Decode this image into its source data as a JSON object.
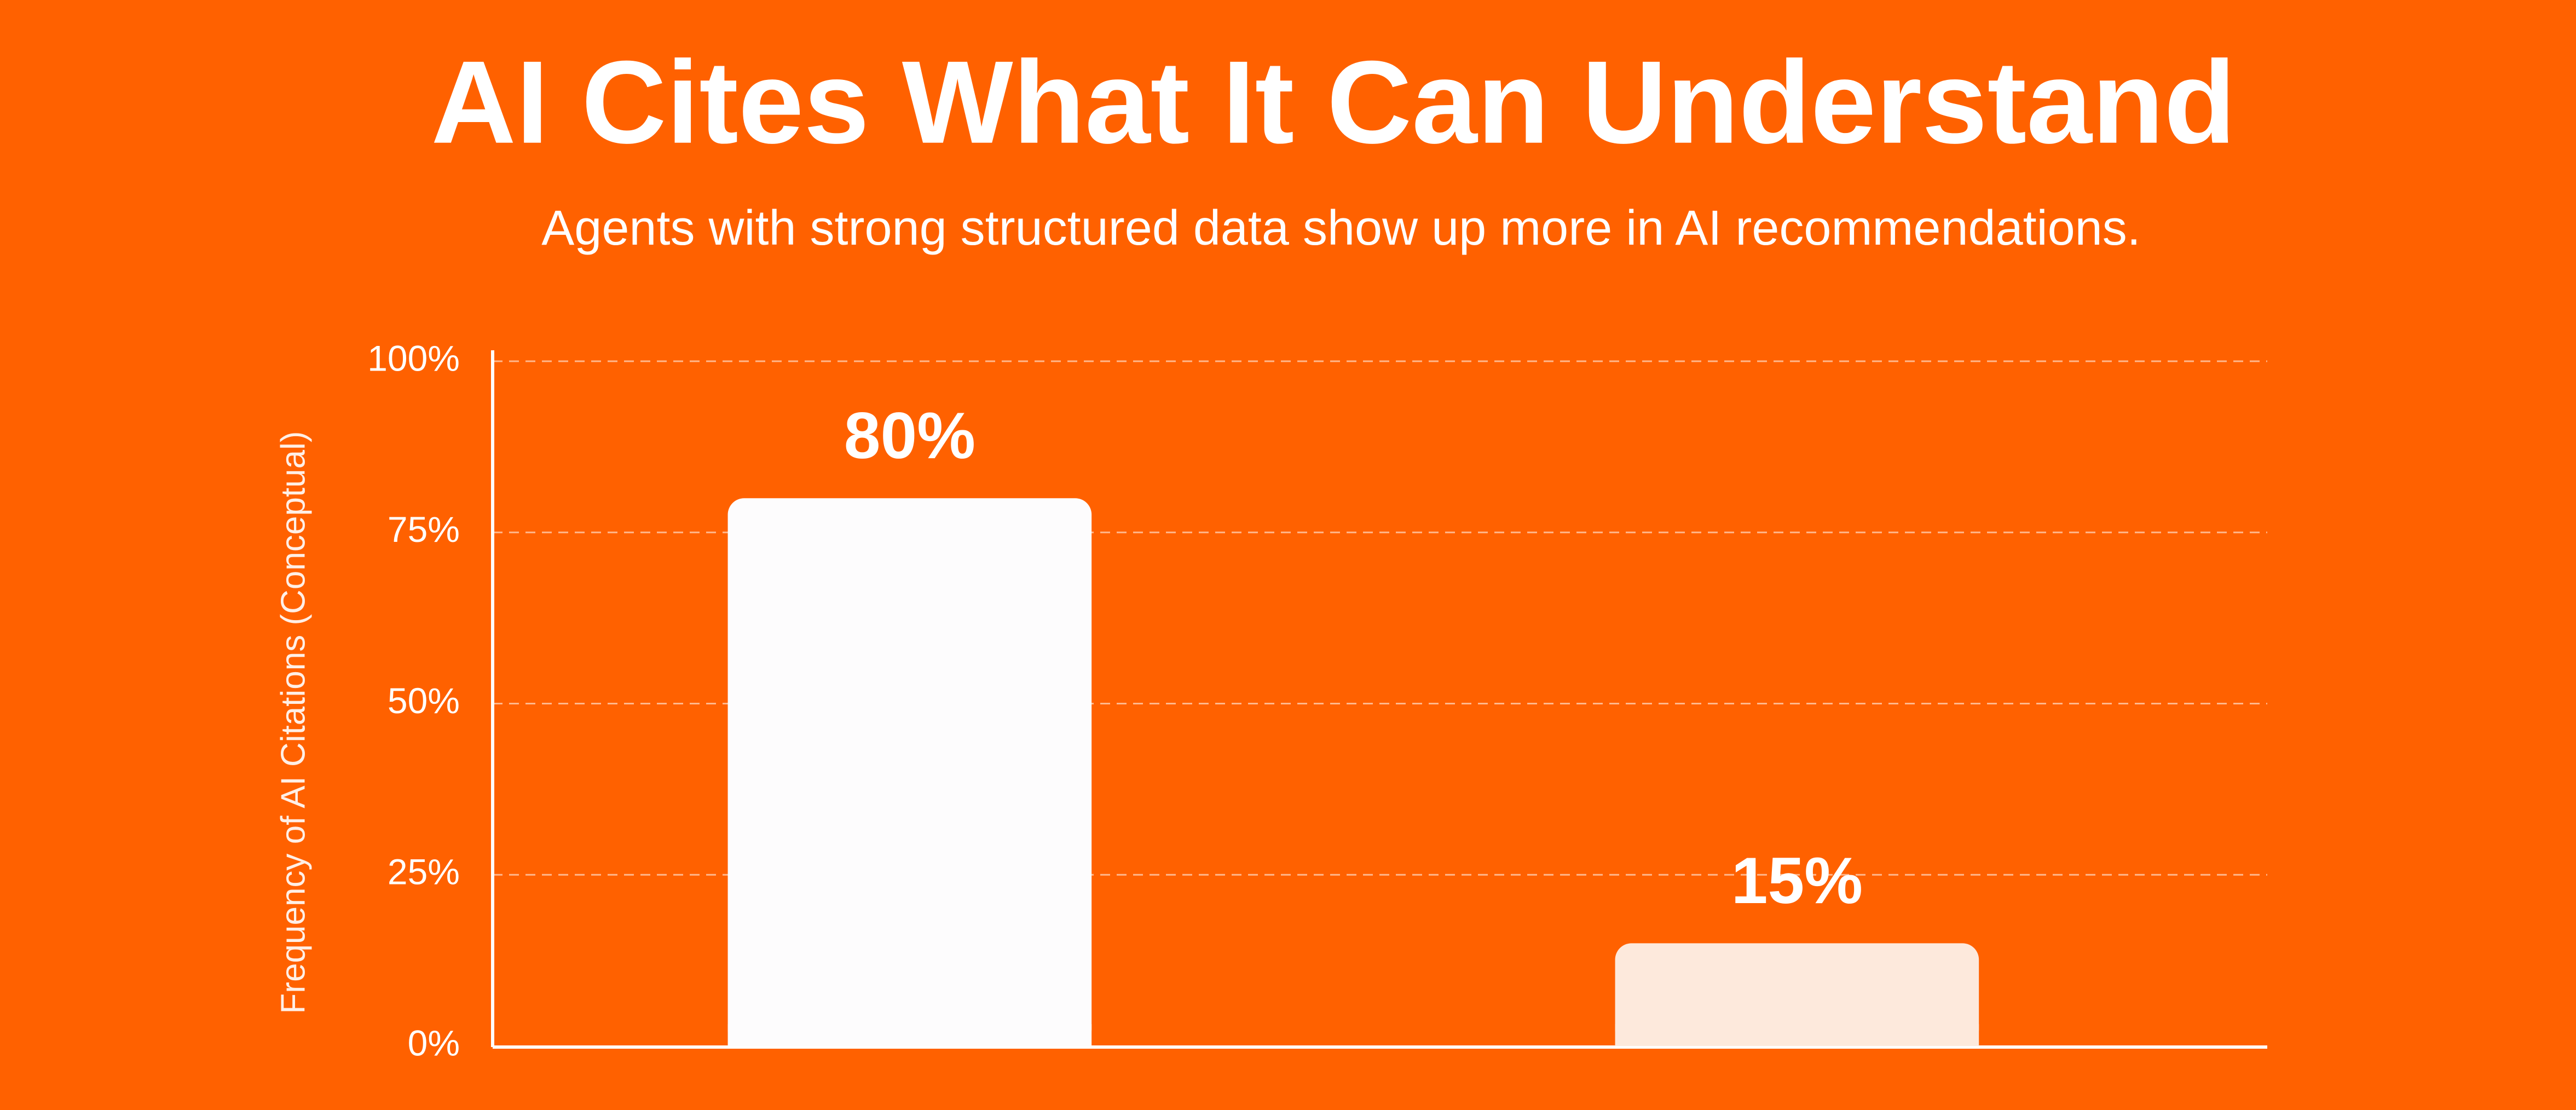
{
  "chart_data": {
    "type": "bar",
    "title": "AI Cites What It Can Understand",
    "subtitle": "Agents with strong structured data show up more in AI recommendations.",
    "y_label": "Frequency of AI Citations (Conceptual)",
    "categories": [
      null,
      null
    ],
    "values": [
      80,
      15
    ],
    "value_labels": [
      "80%",
      "15%"
    ],
    "colors": [
      "#fdfcfd",
      "#fde9dc"
    ],
    "ylim": [
      0,
      100
    ],
    "yticks": [
      {
        "value": 0,
        "label": "0%"
      },
      {
        "value": 25,
        "label": "25%"
      },
      {
        "value": 50,
        "label": "50%"
      },
      {
        "value": 75,
        "label": "75%"
      },
      {
        "value": 100,
        "label": "100%"
      }
    ],
    "grid": true
  }
}
